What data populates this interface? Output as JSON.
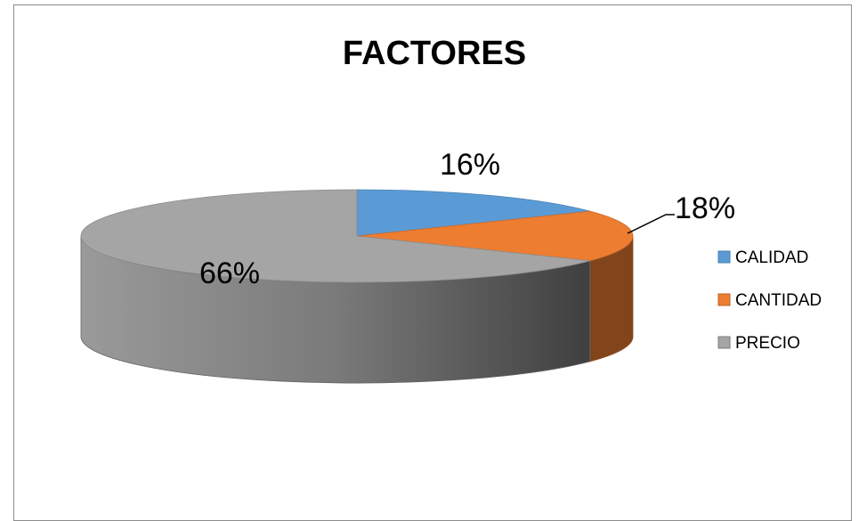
{
  "chart_data": {
    "type": "pie",
    "title": "FACTORES",
    "categories": [
      "CALIDAD",
      "CANTIDAD",
      "PRECIO"
    ],
    "values": [
      16,
      18,
      66
    ],
    "data_labels": [
      "16%",
      "18%",
      "66%"
    ],
    "colors": [
      "#5b9bd5",
      "#ed7d31",
      "#a5a5a5"
    ],
    "legend_position": "right",
    "style": "3d"
  }
}
